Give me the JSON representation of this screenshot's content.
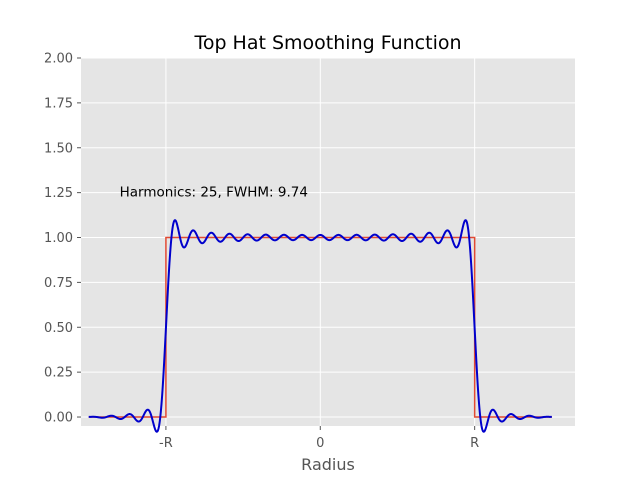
{
  "chart_data": {
    "type": "line",
    "title": "Top Hat Smoothing Function",
    "xlabel": "Radius",
    "ylabel": "",
    "x_tick_labels": [
      "-R",
      "0",
      "R"
    ],
    "x_tick_values": [
      -1,
      0,
      1
    ],
    "xlim": [
      -1.55,
      1.65
    ],
    "ylim": [
      -0.05,
      2.0
    ],
    "y_ticks": [
      0.0,
      0.25,
      0.5,
      0.75,
      1.0,
      1.25,
      1.5,
      1.75,
      2.0
    ],
    "y_tick_labels": [
      "0.00",
      "0.25",
      "0.50",
      "0.75",
      "1.00",
      "1.25",
      "1.50",
      "1.75",
      "2.00"
    ],
    "annotation": "Harmonics: 25, FWHM: 9.74",
    "annotation_position": [
      -1.3,
      1.25
    ],
    "grid": true,
    "background": "#e5e5e5",
    "series": [
      {
        "style": "top-hat",
        "color": "#e24a33",
        "x": [
          -1.5,
          -1.0,
          -1.0,
          1.0,
          1.0,
          1.5
        ],
        "y": [
          0.0,
          0.0,
          1.0,
          1.0,
          0.0,
          0.0
        ]
      },
      {
        "style": "fourier-approximation",
        "color": "#0000cc",
        "harmonics": 25,
        "x_range": [
          -1.5,
          1.5
        ]
      }
    ]
  }
}
